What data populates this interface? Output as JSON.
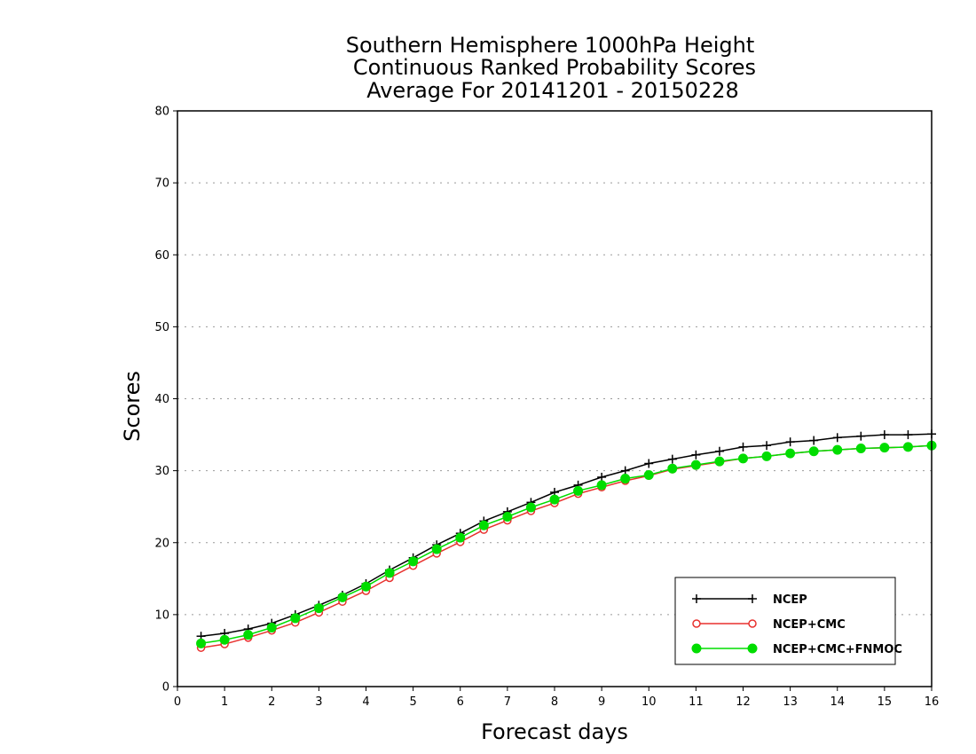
{
  "chart_data": {
    "type": "line",
    "title": [
      "Southern Hemisphere 1000hPa Height",
      "Continuous Ranked Probability Scores",
      "Average For 20141201 - 20150228"
    ],
    "xlabel": "Forecast days",
    "ylabel": "Scores",
    "xlim": [
      0,
      16
    ],
    "ylim": [
      0,
      80
    ],
    "xticks": [
      "0",
      "1",
      "2",
      "3",
      "4",
      "5",
      "6",
      "7",
      "8",
      "9",
      "10",
      "11",
      "12",
      "13",
      "14",
      "15",
      "16"
    ],
    "yticks": [
      "0",
      "10",
      "20",
      "30",
      "40",
      "50",
      "60",
      "70",
      "80"
    ],
    "grid": "horizontal-dotted",
    "legend_position": "bottom-right",
    "x": [
      0.5,
      1,
      1.5,
      2,
      2.5,
      3,
      3.5,
      4,
      4.5,
      5,
      5.5,
      6,
      6.5,
      7,
      7.5,
      8,
      8.5,
      9,
      9.5,
      10,
      10.5,
      11,
      11.5,
      12,
      12.5,
      13,
      13.5,
      14,
      14.5,
      15,
      15.5,
      16
    ],
    "series": [
      {
        "name": "NCEP",
        "color": "#000000",
        "marker": "plus",
        "values": [
          7.0,
          7.4,
          8.0,
          8.8,
          10.0,
          11.3,
          12.7,
          14.3,
          16.2,
          17.9,
          19.7,
          21.3,
          23.0,
          24.3,
          25.6,
          27.0,
          28.0,
          29.1,
          30.0,
          31.0,
          31.6,
          32.2,
          32.7,
          33.3,
          33.5,
          34.0,
          34.2,
          34.6,
          34.8,
          35.0,
          35.0,
          35.1
        ]
      },
      {
        "name": "NCEP+CMC",
        "color": "#e8312e",
        "marker": "open-circle",
        "values": [
          5.4,
          5.9,
          6.8,
          7.8,
          8.9,
          10.3,
          11.8,
          13.3,
          15.1,
          16.8,
          18.5,
          20.1,
          21.8,
          23.1,
          24.4,
          25.5,
          26.8,
          27.7,
          28.6,
          29.3,
          30.2,
          30.7,
          31.2,
          31.7,
          32.0,
          32.4,
          32.7,
          32.9,
          33.1,
          33.2,
          33.3,
          33.5
        ]
      },
      {
        "name": "NCEP+CMC+FNMOC",
        "color": "#00dd00",
        "marker": "filled-circle",
        "values": [
          6.0,
          6.5,
          7.2,
          8.2,
          9.5,
          10.9,
          12.4,
          13.9,
          15.8,
          17.4,
          19.1,
          20.7,
          22.4,
          23.6,
          24.9,
          26.0,
          27.2,
          28.0,
          28.9,
          29.4,
          30.3,
          30.8,
          31.3,
          31.7,
          32.0,
          32.4,
          32.7,
          32.9,
          33.1,
          33.2,
          33.3,
          33.5
        ]
      }
    ]
  }
}
